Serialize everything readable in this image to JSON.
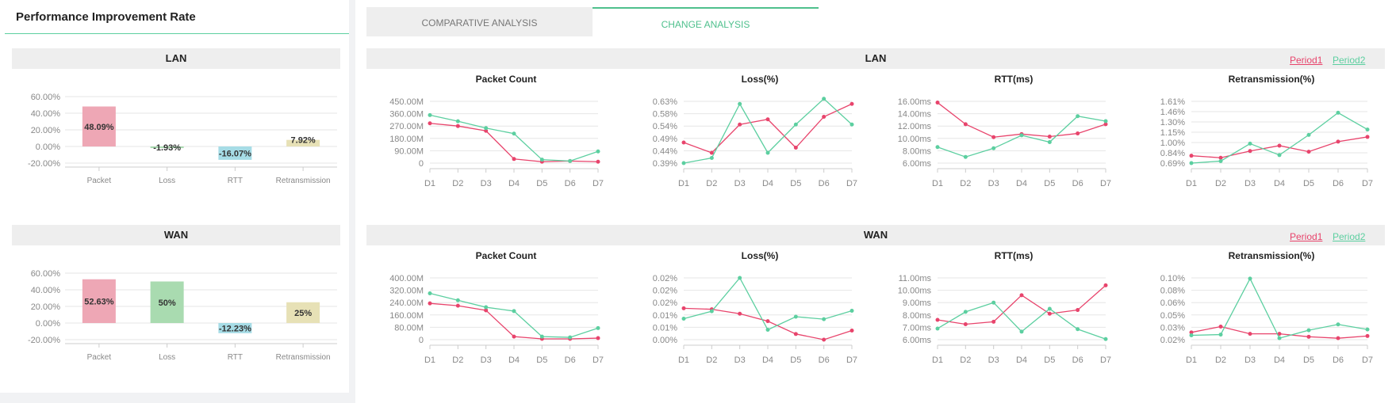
{
  "left": {
    "title": "Performance Improvement Rate",
    "lan_label": "LAN",
    "wan_label": "WAN"
  },
  "tabs": [
    {
      "label": "COMPARATIVE ANALYSIS",
      "active": false
    },
    {
      "label": "CHANGE ANALYSIS",
      "active": true
    }
  ],
  "right": {
    "lan_label": "LAN",
    "wan_label": "WAN",
    "legend": {
      "period1": "Period1",
      "period2": "Period2"
    }
  },
  "colors": {
    "period1": "#e8446c",
    "period2": "#5ccfa0",
    "accent": "#4fc08d",
    "packet_bar": "#eea7b5",
    "loss_bar": "#a9dbb0",
    "rtt_bar": "#a6dce6",
    "retrans_bar": "#e7e1b6"
  },
  "chart_data": [
    {
      "id": "lan-rate",
      "type": "bar",
      "categories": [
        "Packet",
        "Loss",
        "RTT",
        "Retransmission"
      ],
      "values": [
        48.09,
        -1.93,
        -16.07,
        7.92
      ],
      "data_labels": [
        "48.09%",
        "-1.93%",
        "-16.07%",
        "7.92%"
      ],
      "yticks": [
        "60.00%",
        "40.00%",
        "20.00%",
        "0.00%",
        "-20.00%"
      ],
      "ylim": [
        -20,
        60
      ]
    },
    {
      "id": "wan-rate",
      "type": "bar",
      "categories": [
        "Packet",
        "Loss",
        "RTT",
        "Retransmission"
      ],
      "values": [
        52.63,
        50,
        -12.23,
        25
      ],
      "data_labels": [
        "52.63%",
        "50%",
        "-12.23%",
        "25%"
      ],
      "yticks": [
        "60.00%",
        "40.00%",
        "20.00%",
        "0.00%",
        "-20.00%"
      ],
      "ylim": [
        -20,
        60
      ]
    },
    {
      "id": "lan-packet",
      "type": "line",
      "title": "Packet Count",
      "x": [
        "D1",
        "D2",
        "D3",
        "D4",
        "D5",
        "D6",
        "D7"
      ],
      "yticks": [
        "450.00M",
        "360.00M",
        "270.00M",
        "180.00M",
        "90.00M",
        "0"
      ],
      "ylim": [
        0,
        450
      ],
      "series": [
        {
          "name": "Period1",
          "values": [
            290,
            270,
            235,
            30,
            10,
            15,
            10
          ]
        },
        {
          "name": "Period2",
          "values": [
            350,
            305,
            255,
            215,
            25,
            15,
            85
          ]
        }
      ]
    },
    {
      "id": "lan-loss",
      "type": "line",
      "title": "Loss(%)",
      "x": [
        "D1",
        "D2",
        "D3",
        "D4",
        "D5",
        "D6",
        "D7"
      ],
      "yticks": [
        "0.63%",
        "0.58%",
        "0.54%",
        "0.49%",
        "0.44%",
        "0.39%"
      ],
      "ylim": [
        0.39,
        0.63
      ],
      "series": [
        {
          "name": "Period1",
          "values": [
            0.47,
            0.43,
            0.54,
            0.56,
            0.45,
            0.57,
            0.62
          ]
        },
        {
          "name": "Period2",
          "values": [
            0.39,
            0.41,
            0.62,
            0.43,
            0.54,
            0.64,
            0.54
          ]
        }
      ]
    },
    {
      "id": "lan-rtt",
      "type": "line",
      "title": "RTT(ms)",
      "x": [
        "D1",
        "D2",
        "D3",
        "D4",
        "D5",
        "D6",
        "D7"
      ],
      "yticks": [
        "16.00ms",
        "14.00ms",
        "12.00ms",
        "10.00ms",
        "8.00ms",
        "6.00ms"
      ],
      "ylim": [
        6,
        16
      ],
      "series": [
        {
          "name": "Period1",
          "values": [
            15.8,
            12.3,
            10.2,
            10.7,
            10.3,
            10.8,
            12.3
          ]
        },
        {
          "name": "Period2",
          "values": [
            8.6,
            7.0,
            8.4,
            10.5,
            9.4,
            13.6,
            12.8
          ]
        }
      ]
    },
    {
      "id": "lan-retrans",
      "type": "line",
      "title": "Retransmission(%)",
      "x": [
        "D1",
        "D2",
        "D3",
        "D4",
        "D5",
        "D6",
        "D7"
      ],
      "yticks": [
        "1.61%",
        "1.46%",
        "1.30%",
        "1.15%",
        "1.00%",
        "0.84%",
        "0.69%"
      ],
      "ylim": [
        0.69,
        1.61
      ],
      "series": [
        {
          "name": "Period1",
          "values": [
            0.8,
            0.77,
            0.87,
            0.95,
            0.86,
            1.01,
            1.08
          ]
        },
        {
          "name": "Period2",
          "values": [
            0.69,
            0.72,
            0.98,
            0.81,
            1.11,
            1.44,
            1.19
          ]
        }
      ]
    },
    {
      "id": "wan-packet",
      "type": "line",
      "title": "Packet Count",
      "x": [
        "D1",
        "D2",
        "D3",
        "D4",
        "D5",
        "D6",
        "D7"
      ],
      "yticks": [
        "400.00M",
        "320.00M",
        "240.00M",
        "160.00M",
        "80.00M",
        "0"
      ],
      "ylim": [
        0,
        400
      ],
      "series": [
        {
          "name": "Period1",
          "values": [
            235,
            220,
            190,
            20,
            5,
            5,
            10
          ]
        },
        {
          "name": "Period2",
          "values": [
            300,
            255,
            210,
            185,
            20,
            15,
            75
          ]
        }
      ]
    },
    {
      "id": "wan-loss",
      "type": "line",
      "title": "Loss(%)",
      "x": [
        "D1",
        "D2",
        "D3",
        "D4",
        "D5",
        "D6",
        "D7"
      ],
      "yticks": [
        "0.02%",
        "0.02%",
        "0.02%",
        "0.01%",
        "0.01%",
        "0.00%"
      ],
      "ylim": [
        0,
        0.025
      ],
      "series": [
        {
          "name": "Period1",
          "values": [
            0.0127,
            0.0123,
            0.0105,
            0.0075,
            0.0023,
            0.0,
            0.0037
          ]
        },
        {
          "name": "Period2",
          "values": [
            0.0085,
            0.0115,
            0.025,
            0.004,
            0.0093,
            0.0083,
            0.0117
          ]
        }
      ]
    },
    {
      "id": "wan-rtt",
      "type": "line",
      "title": "RTT(ms)",
      "x": [
        "D1",
        "D2",
        "D3",
        "D4",
        "D5",
        "D6",
        "D7"
      ],
      "yticks": [
        "11.00ms",
        "10.00ms",
        "9.00ms",
        "8.00ms",
        "7.00ms",
        "6.00ms"
      ],
      "ylim": [
        6,
        11
      ],
      "series": [
        {
          "name": "Period1",
          "values": [
            7.6,
            7.25,
            7.45,
            9.6,
            8.1,
            8.4,
            10.4
          ]
        },
        {
          "name": "Period2",
          "values": [
            6.9,
            8.25,
            9.0,
            6.65,
            8.5,
            6.85,
            6.05
          ]
        }
      ]
    },
    {
      "id": "wan-retrans",
      "type": "line",
      "title": "Retransmission(%)",
      "x": [
        "D1",
        "D2",
        "D3",
        "D4",
        "D5",
        "D6",
        "D7"
      ],
      "yticks": [
        "0.10%",
        "0.08%",
        "0.06%",
        "0.05%",
        "0.03%",
        "0.02%"
      ],
      "ylim": [
        0.015,
        0.1
      ],
      "series": [
        {
          "name": "Period1",
          "values": [
            0.025,
            0.033,
            0.023,
            0.023,
            0.019,
            0.017,
            0.02
          ]
        },
        {
          "name": "Period2",
          "values": [
            0.021,
            0.022,
            0.099,
            0.017,
            0.028,
            0.036,
            0.029
          ]
        }
      ]
    }
  ]
}
